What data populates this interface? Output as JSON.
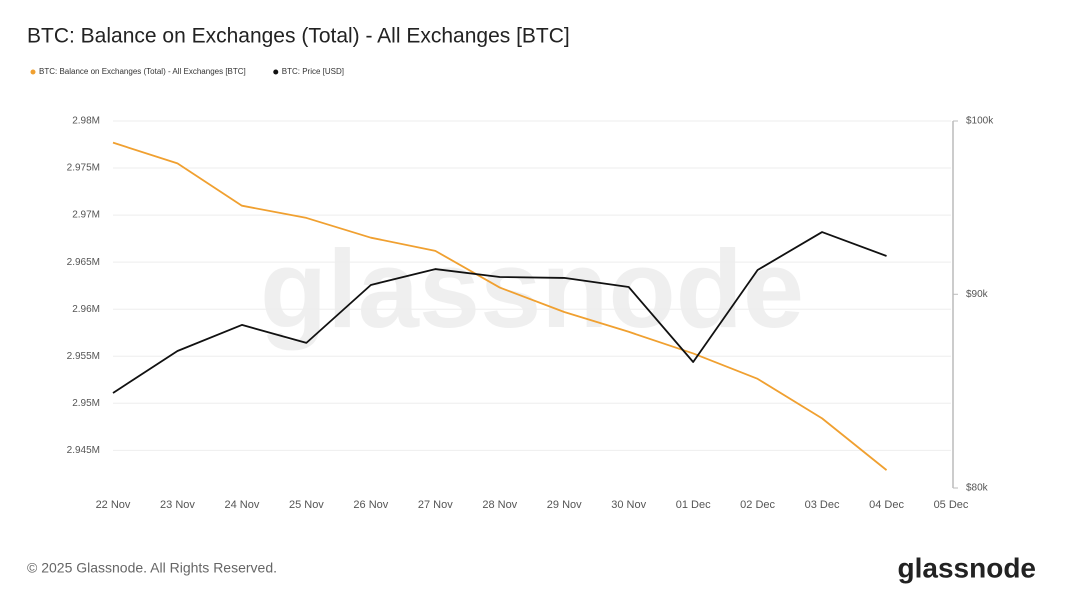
{
  "chart_data": {
    "type": "line",
    "title": "BTC: Balance on Exchanges (Total) - All Exchanges [BTC]",
    "categories": [
      "22 Nov",
      "23 Nov",
      "24 Nov",
      "25 Nov",
      "26 Nov",
      "27 Nov",
      "28 Nov",
      "29 Nov",
      "30 Nov",
      "01 Dec",
      "02 Dec",
      "03 Dec",
      "04 Dec",
      "05 Dec"
    ],
    "series": [
      {
        "name": "BTC: Balance on Exchanges (Total) - All Exchanges [BTC]",
        "color": "#f0a030",
        "values": [
          2977700,
          2975500,
          2971000,
          2969700,
          2967600,
          2966200,
          2962300,
          2959700,
          2957600,
          2955300,
          2952600,
          2948400,
          2942900,
          null
        ]
      },
      {
        "name": "BTC: Price [USD]",
        "color": "#111111",
        "axis": "y2",
        "values": [
          84760,
          86950,
          88340,
          87380,
          90510,
          91390,
          90950,
          90900,
          90400,
          86370,
          91340,
          93470,
          92120,
          null
        ]
      }
    ],
    "ylim": [
      2941000,
      2980000
    ],
    "yticks": [
      {
        "value": 2945000,
        "label": "2.945M"
      },
      {
        "value": 2950000,
        "label": "2.95M"
      },
      {
        "value": 2955000,
        "label": "2.955M"
      },
      {
        "value": 2960000,
        "label": "2.96M"
      },
      {
        "value": 2965000,
        "label": "2.965M"
      },
      {
        "value": 2970000,
        "label": "2.97M"
      },
      {
        "value": 2975000,
        "label": "2.975M"
      },
      {
        "value": 2980000,
        "label": "2.98M"
      }
    ],
    "y2lim": [
      80000,
      100000
    ],
    "y2ticks": [
      {
        "value": 80000,
        "label": "$80k"
      },
      {
        "value": 90000,
        "label": "$90k"
      },
      {
        "value": 100000,
        "label": "$100k"
      }
    ],
    "y2log": true,
    "grid": true,
    "legend": "top-left",
    "watermark": "glassnode",
    "footer": "© 2025 Glassnode. All Rights Reserved.",
    "brand": "glassnode"
  }
}
